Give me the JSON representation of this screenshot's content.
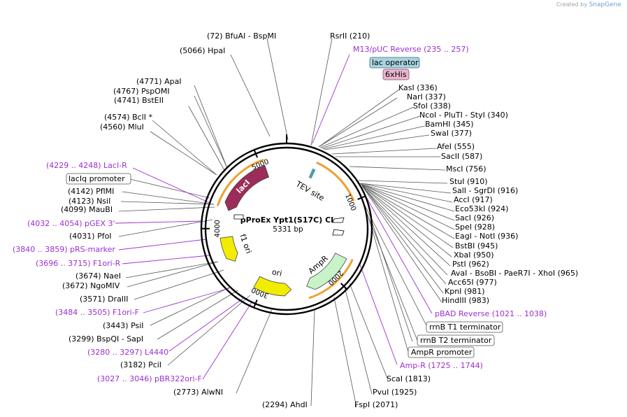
{
  "credit": {
    "prefix": "Created by",
    "brand": "SnapGene"
  },
  "plasmid": {
    "name": "pProEx Ypt1(S17C) CL",
    "size_label": "5331 bp",
    "length": 5331
  },
  "ticks": [
    {
      "label": "1000",
      "pos": 1000
    },
    {
      "label": "2000",
      "pos": 2000
    },
    {
      "label": "3000",
      "pos": 3000
    },
    {
      "label": "4000",
      "pos": 4000
    },
    {
      "label": "5000",
      "pos": 5000
    }
  ],
  "features": [
    {
      "label": "lacI",
      "start": 4255,
      "end": 5050,
      "color": "#9c2d5b"
    },
    {
      "label": "TEV site",
      "start": 355,
      "end": 375,
      "color": "#4f9ea8"
    },
    {
      "label": "AmpR",
      "start": 1725,
      "end": 2380,
      "color": "#c8f2c8"
    },
    {
      "label": "ori",
      "start": 2600,
      "end": 3100,
      "color": "#f2ec00"
    },
    {
      "label": "f1 ori",
      "start": 3520,
      "end": 3880,
      "color": "#f2ec00"
    }
  ],
  "enzymes": [
    {
      "text": "(72)  BfuAI   -  BspMI"
    },
    {
      "text": "RsrII    (210)"
    },
    {
      "text": "(5066)  HpaI"
    },
    {
      "text": "M13/pUC Reverse      (235 .. 257)"
    },
    {
      "text": "lac operator"
    },
    {
      "text": "6xHis"
    },
    {
      "text": "(4771)  ApaI"
    },
    {
      "text": "KasI    (336)"
    },
    {
      "text": "(4767)  PspOMI"
    },
    {
      "text": "NarI    (337)"
    },
    {
      "text": "(4741)  BstEII"
    },
    {
      "text": "SfoI    (338)"
    },
    {
      "text": "NcoI   -  PluTI   -  StyI    (340)"
    },
    {
      "text": "(4574)  BclI *"
    },
    {
      "text": "BamHI    (345)"
    },
    {
      "text": "(4560)  MluI"
    },
    {
      "text": "SwaI    (377)"
    },
    {
      "text": "AfeI    (555)"
    },
    {
      "text": "SacII    (587)"
    },
    {
      "text": "(4229 .. 4248)  LacI-R"
    },
    {
      "text": "MscI    (756)"
    },
    {
      "text": "lacIq promoter"
    },
    {
      "text": "StuI    (910)"
    },
    {
      "text": "(4142)  PflMI"
    },
    {
      "text": "SalI   -  SgrDI    (916)"
    },
    {
      "text": "(4123)  NsiI"
    },
    {
      "text": "AccI    (917)"
    },
    {
      "text": "(4099)  MauBI"
    },
    {
      "text": "Eco53kI    (924)"
    },
    {
      "text": "SacI    (926)"
    },
    {
      "text": "(4032 .. 4054)  pGEX 3'"
    },
    {
      "text": "SpeI    (928)"
    },
    {
      "text": "(4031)  PfoI"
    },
    {
      "text": "EagI   -  NotI    (936)"
    },
    {
      "text": "BstBI    (945)"
    },
    {
      "text": "(3840 .. 3859)  pRS-marker"
    },
    {
      "text": "XbaI    (950)"
    },
    {
      "text": "PstI    (962)"
    },
    {
      "text": "(3696 .. 3715)  F1ori-R"
    },
    {
      "text": "AvaI   -  BsoBI   -  PaeR7I   -  XhoI    (965)"
    },
    {
      "text": "(3674)  NaeI"
    },
    {
      "text": "Acc65I    (977)"
    },
    {
      "text": "(3672)  NgoMIV"
    },
    {
      "text": "KpnI    (981)"
    },
    {
      "text": "(3571)  DraIII"
    },
    {
      "text": "HindIII    (983)"
    },
    {
      "text": "(3484 .. 3505)  F1ori-F"
    },
    {
      "text": "pBAD Reverse      (1021 .. 1038)"
    },
    {
      "text": "(3443)  PsiI"
    },
    {
      "text": "rrnB T1 terminator"
    },
    {
      "text": "(3299)  BspQI   -  SapI"
    },
    {
      "text": "rrnB T2 terminator"
    },
    {
      "text": "(3280 .. 3297)  L4440"
    },
    {
      "text": "AmpR promoter"
    },
    {
      "text": "(3182)  PciI"
    },
    {
      "text": "Amp-R      (1725 .. 1744)"
    },
    {
      "text": "(3027 .. 3046)  pBR322ori-F"
    },
    {
      "text": "ScaI    (1813)"
    },
    {
      "text": "(2773)  AlwNI"
    },
    {
      "text": "PvuI    (1925)"
    },
    {
      "text": "(2294)  AhdI"
    },
    {
      "text": "FspI    (2071)"
    }
  ],
  "colors": {
    "primer": "#9b2fd1",
    "feature_box": "#ffffff",
    "lac_operator": "#a9d4e0",
    "his_tag": "#e9b7cf",
    "arc": "#f0a030",
    "backbone": "#000000"
  }
}
